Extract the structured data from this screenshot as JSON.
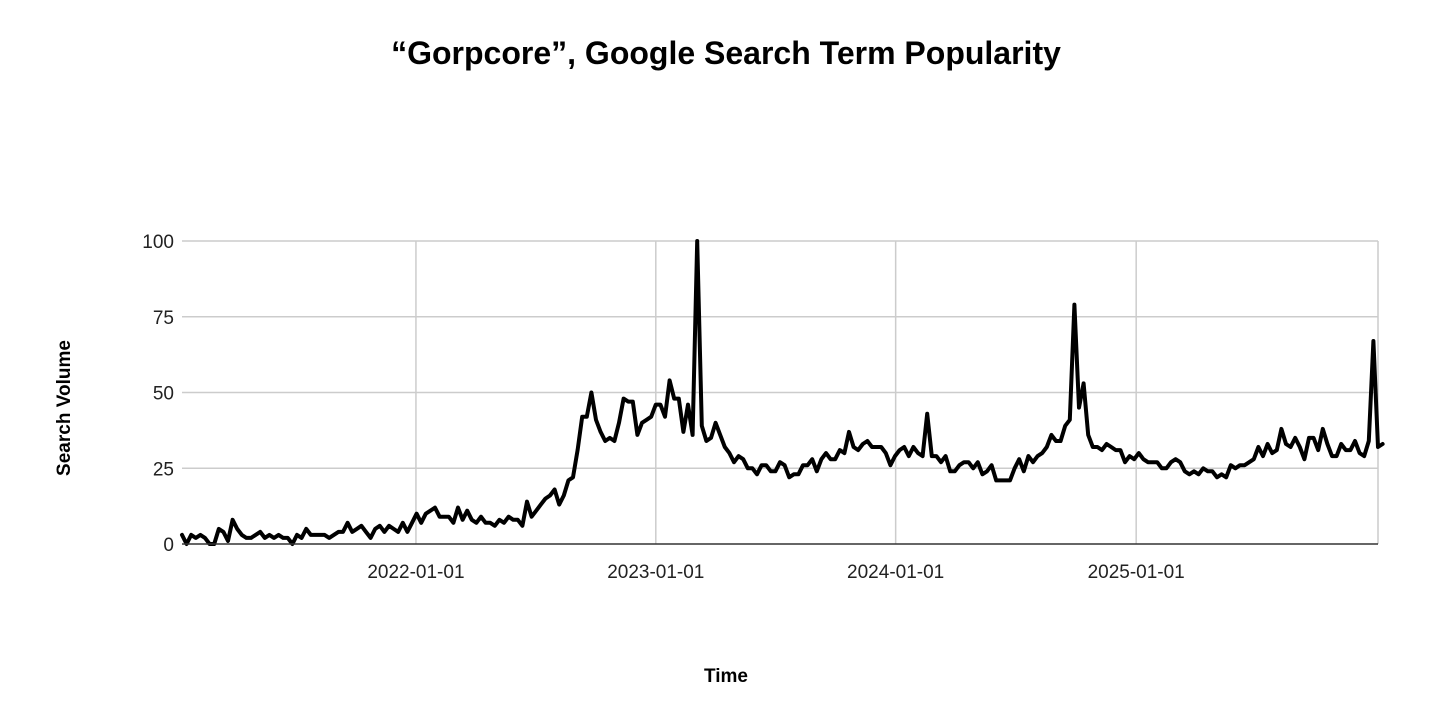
{
  "chart_data": {
    "type": "line",
    "title": "“Gorpcore”, Google Search Term Popularity",
    "xlabel": "Time",
    "ylabel": "Search Volume",
    "xlim": [
      "2021-01-10",
      "2026-01-04"
    ],
    "ylim": [
      0,
      100
    ],
    "x_ticks": [
      "2022-01-01",
      "2023-01-01",
      "2024-01-01",
      "2025-01-01"
    ],
    "y_ticks": [
      0,
      25,
      50,
      75,
      100
    ],
    "grid": true,
    "legend": "none",
    "colors": {
      "line": "#000000",
      "grid": "#cccccc"
    },
    "series": [
      {
        "weeks_interval": 1,
        "x_start": "2021-01-10",
        "values": [
          3,
          0,
          3,
          2,
          3,
          2,
          0,
          0,
          5,
          4,
          1,
          8,
          5,
          3,
          2,
          2,
          3,
          4,
          2,
          3,
          2,
          3,
          2,
          2,
          0,
          3,
          2,
          5,
          3,
          3,
          3,
          3,
          2,
          3,
          4,
          4,
          7,
          4,
          5,
          6,
          4,
          2,
          5,
          6,
          4,
          6,
          5,
          4,
          7,
          4,
          7,
          10,
          7,
          10,
          11,
          12,
          9,
          9,
          9,
          7,
          12,
          8,
          11,
          8,
          7,
          9,
          7,
          7,
          6,
          8,
          7,
          9,
          8,
          8,
          6,
          14,
          9,
          11,
          13,
          15,
          16,
          18,
          13,
          16,
          21,
          22,
          31,
          42,
          42,
          50,
          41,
          37,
          34,
          35,
          34,
          40,
          48,
          47,
          47,
          36,
          40,
          41,
          42,
          46,
          46,
          42,
          54,
          48,
          48,
          37,
          46,
          36,
          100,
          39,
          34,
          35,
          40,
          36,
          32,
          30,
          27,
          29,
          28,
          25,
          25,
          23,
          26,
          26,
          24,
          24,
          27,
          26,
          22,
          23,
          23,
          26,
          26,
          28,
          24,
          28,
          30,
          28,
          28,
          31,
          30,
          37,
          32,
          31,
          33,
          34,
          32,
          32,
          32,
          30,
          26,
          29,
          31,
          32,
          29,
          32,
          30,
          29,
          43,
          29,
          29,
          27,
          29,
          24,
          24,
          26,
          27,
          27,
          25,
          27,
          23,
          24,
          26,
          21,
          21,
          21,
          21,
          25,
          28,
          24,
          29,
          27,
          29,
          30,
          32,
          36,
          34,
          34,
          39,
          41,
          79,
          45,
          53,
          36,
          32,
          32,
          31,
          33,
          32,
          31,
          31,
          27,
          29,
          28,
          30,
          28,
          27,
          27,
          27,
          25,
          25,
          27,
          28,
          27,
          24,
          23,
          24,
          23,
          25,
          24,
          24,
          22,
          23,
          22,
          26,
          25,
          26,
          26,
          27,
          28,
          32,
          29,
          33,
          30,
          31,
          38,
          33,
          32,
          35,
          32,
          28,
          35,
          35,
          31,
          38,
          33,
          29,
          29,
          33,
          31,
          31,
          34,
          30,
          29,
          34,
          67,
          32,
          33
        ]
      }
    ]
  }
}
